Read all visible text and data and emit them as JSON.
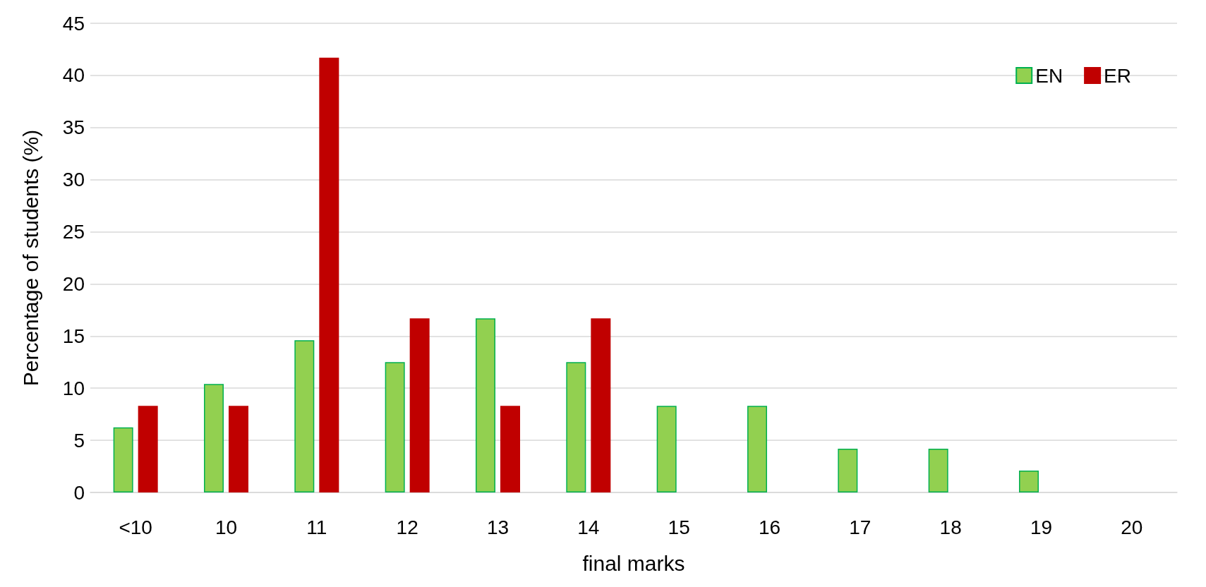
{
  "chart_data": {
    "type": "bar",
    "xlabel": "final marks",
    "ylabel": "Percentage of students (%)",
    "categories": [
      "<10",
      "10",
      "11",
      "12",
      "13",
      "14",
      "15",
      "16",
      "17",
      "18",
      "19",
      "20"
    ],
    "series": [
      {
        "name": "EN",
        "color": "#92d050",
        "values": [
          6.25,
          10.4,
          14.6,
          12.5,
          16.7,
          12.5,
          8.3,
          8.3,
          4.2,
          4.2,
          2.1,
          0
        ]
      },
      {
        "name": "ER",
        "color": "#c00000",
        "values": [
          8.3,
          8.3,
          41.7,
          16.7,
          8.3,
          16.7,
          0,
          0,
          0,
          0,
          0,
          0
        ]
      }
    ],
    "ylim": [
      0,
      45
    ],
    "yticks": [
      0,
      5,
      10,
      15,
      20,
      25,
      30,
      35,
      40,
      45
    ],
    "grid": "y",
    "legend": "top right"
  }
}
